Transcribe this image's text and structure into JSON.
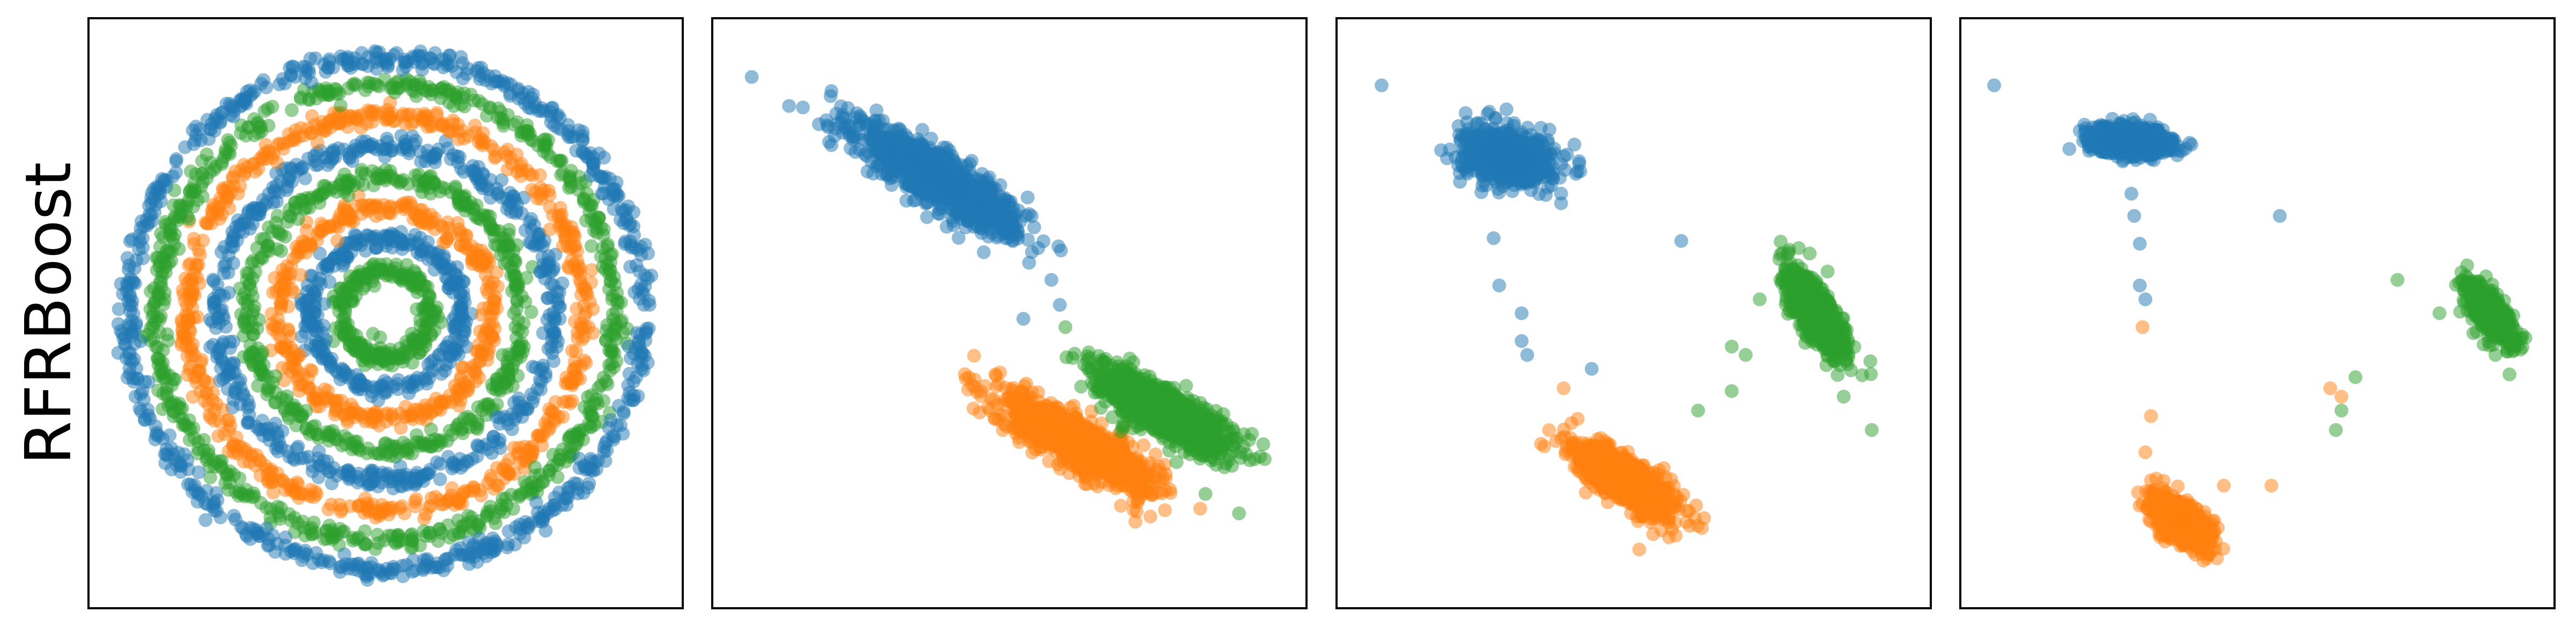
{
  "figure": {
    "row_label": "RFRBoost",
    "colors": {
      "blue": "#1f77b4",
      "orange": "#ff7f0e",
      "green": "#2ca02c"
    },
    "point_opacity": 0.5
  },
  "chart_data": [
    {
      "type": "scatter",
      "panel": 1,
      "description_free": true,
      "grid": false,
      "ticks": false,
      "xlim": [
        -1,
        1
      ],
      "ylim": [
        -1,
        1
      ],
      "series": [
        {
          "color": "#2ca02c",
          "shape": "ring",
          "center": [
            0,
            0
          ],
          "radius": 0.16,
          "count": 260,
          "noise": 0.035
        },
        {
          "color": "#1f77b4",
          "shape": "ring",
          "center": [
            0,
            0
          ],
          "radius": 0.27,
          "count": 320,
          "noise": 0.035
        },
        {
          "color": "#ff7f0e",
          "shape": "ring",
          "center": [
            0,
            0
          ],
          "radius": 0.38,
          "count": 380,
          "noise": 0.035
        },
        {
          "color": "#2ca02c",
          "shape": "ring",
          "center": [
            0,
            0
          ],
          "radius": 0.49,
          "count": 440,
          "noise": 0.035
        },
        {
          "color": "#1f77b4",
          "shape": "ring",
          "center": [
            0,
            0
          ],
          "radius": 0.6,
          "count": 500,
          "noise": 0.035
        },
        {
          "color": "#ff7f0e",
          "shape": "ring",
          "center": [
            0,
            0
          ],
          "radius": 0.71,
          "count": 560,
          "noise": 0.035
        },
        {
          "color": "#2ca02c",
          "shape": "ring",
          "center": [
            0,
            0
          ],
          "radius": 0.82,
          "count": 620,
          "noise": 0.035
        },
        {
          "color": "#1f77b4",
          "shape": "ring",
          "center": [
            0,
            0
          ],
          "radius": 0.92,
          "count": 680,
          "noise": 0.035
        }
      ]
    },
    {
      "type": "scatter",
      "panel": 2,
      "grid": false,
      "ticks": false,
      "xlim": [
        -1,
        1
      ],
      "ylim": [
        -1,
        1
      ],
      "series": [
        {
          "color": "#1f77b4",
          "shape": "blob",
          "center": [
            -0.25,
            0.48
          ],
          "spread": [
            0.33,
            0.08
          ],
          "angle": -32,
          "count": 1100,
          "extra": [
            [
              -0.92,
              0.85
            ],
            [
              -0.68,
              0.68
            ],
            [
              -0.55,
              0.58
            ],
            [
              0.15,
              0.12
            ],
            [
              0.05,
              -0.02
            ],
            [
              0.18,
              0.03
            ]
          ]
        },
        {
          "color": "#ff7f0e",
          "shape": "blob",
          "center": [
            0.25,
            -0.47
          ],
          "spread": [
            0.3,
            0.08
          ],
          "angle": -30,
          "count": 1100,
          "extra": [
            [
              -0.05,
              -0.22
            ],
            [
              0.45,
              -0.75
            ]
          ]
        },
        {
          "color": "#2ca02c",
          "shape": "blob",
          "center": [
            0.55,
            -0.35
          ],
          "spread": [
            0.27,
            0.08
          ],
          "angle": -30,
          "count": 1000,
          "extra": [
            [
              0.2,
              -0.05
            ],
            [
              0.82,
              -0.72
            ],
            [
              0.7,
              -0.65
            ]
          ]
        }
      ]
    },
    {
      "type": "scatter",
      "panel": 3,
      "grid": false,
      "ticks": false,
      "xlim": [
        -1,
        1
      ],
      "ylim": [
        -1,
        1
      ],
      "series": [
        {
          "color": "#1f77b4",
          "shape": "blob",
          "center": [
            -0.45,
            0.56
          ],
          "spread": [
            0.16,
            0.09
          ],
          "angle": -10,
          "count": 800,
          "extra": [
            [
              -0.9,
              0.82
            ],
            [
              -0.6,
              0.72
            ],
            [
              -0.32,
              0.6
            ],
            [
              -0.5,
              0.27
            ],
            [
              -0.48,
              0.1
            ],
            [
              -0.4,
              0.0
            ],
            [
              -0.4,
              -0.1
            ],
            [
              -0.38,
              -0.15
            ],
            [
              -0.15,
              -0.2
            ],
            [
              0.17,
              0.26
            ]
          ]
        },
        {
          "color": "#ff7f0e",
          "shape": "blob",
          "center": [
            -0.03,
            -0.6
          ],
          "spread": [
            0.2,
            0.07
          ],
          "angle": -33,
          "count": 900,
          "extra": [
            [
              -0.25,
              -0.27
            ],
            [
              -0.2,
              -0.38
            ],
            [
              0.15,
              -0.8
            ],
            [
              0.02,
              -0.85
            ]
          ]
        },
        {
          "color": "#2ca02c",
          "shape": "blob",
          "center": [
            0.65,
            0.0
          ],
          "spread": [
            0.18,
            0.06
          ],
          "angle": -58,
          "count": 700,
          "extra": [
            [
              0.23,
              -0.35
            ],
            [
              0.35,
              -0.28
            ],
            [
              0.4,
              -0.15
            ],
            [
              0.55,
              0.12
            ],
            [
              0.75,
              -0.3
            ],
            [
              0.85,
              -0.42
            ],
            [
              0.35,
              -0.12
            ],
            [
              0.45,
              0.05
            ]
          ]
        }
      ]
    },
    {
      "type": "scatter",
      "panel": 4,
      "grid": false,
      "ticks": false,
      "xlim": [
        -1,
        1
      ],
      "ylim": [
        -1,
        1
      ],
      "series": [
        {
          "color": "#1f77b4",
          "shape": "blob",
          "center": [
            -0.45,
            0.62
          ],
          "spread": [
            0.15,
            0.05
          ],
          "angle": -5,
          "count": 700,
          "extra": [
            [
              -0.94,
              0.82
            ],
            [
              -0.45,
              0.43
            ],
            [
              -0.44,
              0.35
            ],
            [
              -0.42,
              0.25
            ],
            [
              -0.42,
              0.1
            ],
            [
              -0.4,
              0.05
            ],
            [
              0.08,
              0.35
            ]
          ]
        },
        {
          "color": "#ff7f0e",
          "shape": "blob",
          "center": [
            -0.27,
            -0.75
          ],
          "spread": [
            0.12,
            0.06
          ],
          "angle": -40,
          "count": 700,
          "extra": [
            [
              -0.41,
              -0.05
            ],
            [
              -0.38,
              -0.37
            ],
            [
              -0.4,
              -0.5
            ],
            [
              -0.12,
              -0.62
            ],
            [
              0.05,
              -0.62
            ],
            [
              0.26,
              -0.27
            ],
            [
              0.3,
              -0.3
            ]
          ]
        },
        {
          "color": "#2ca02c",
          "shape": "blob",
          "center": [
            0.83,
            0.0
          ],
          "spread": [
            0.12,
            0.045
          ],
          "angle": -55,
          "count": 650,
          "extra": [
            [
              0.5,
              0.12
            ],
            [
              0.65,
              0.0
            ],
            [
              0.85,
              -0.15
            ],
            [
              0.35,
              -0.23
            ],
            [
              0.3,
              -0.35
            ],
            [
              0.28,
              -0.42
            ],
            [
              0.9,
              -0.22
            ]
          ]
        }
      ]
    }
  ]
}
